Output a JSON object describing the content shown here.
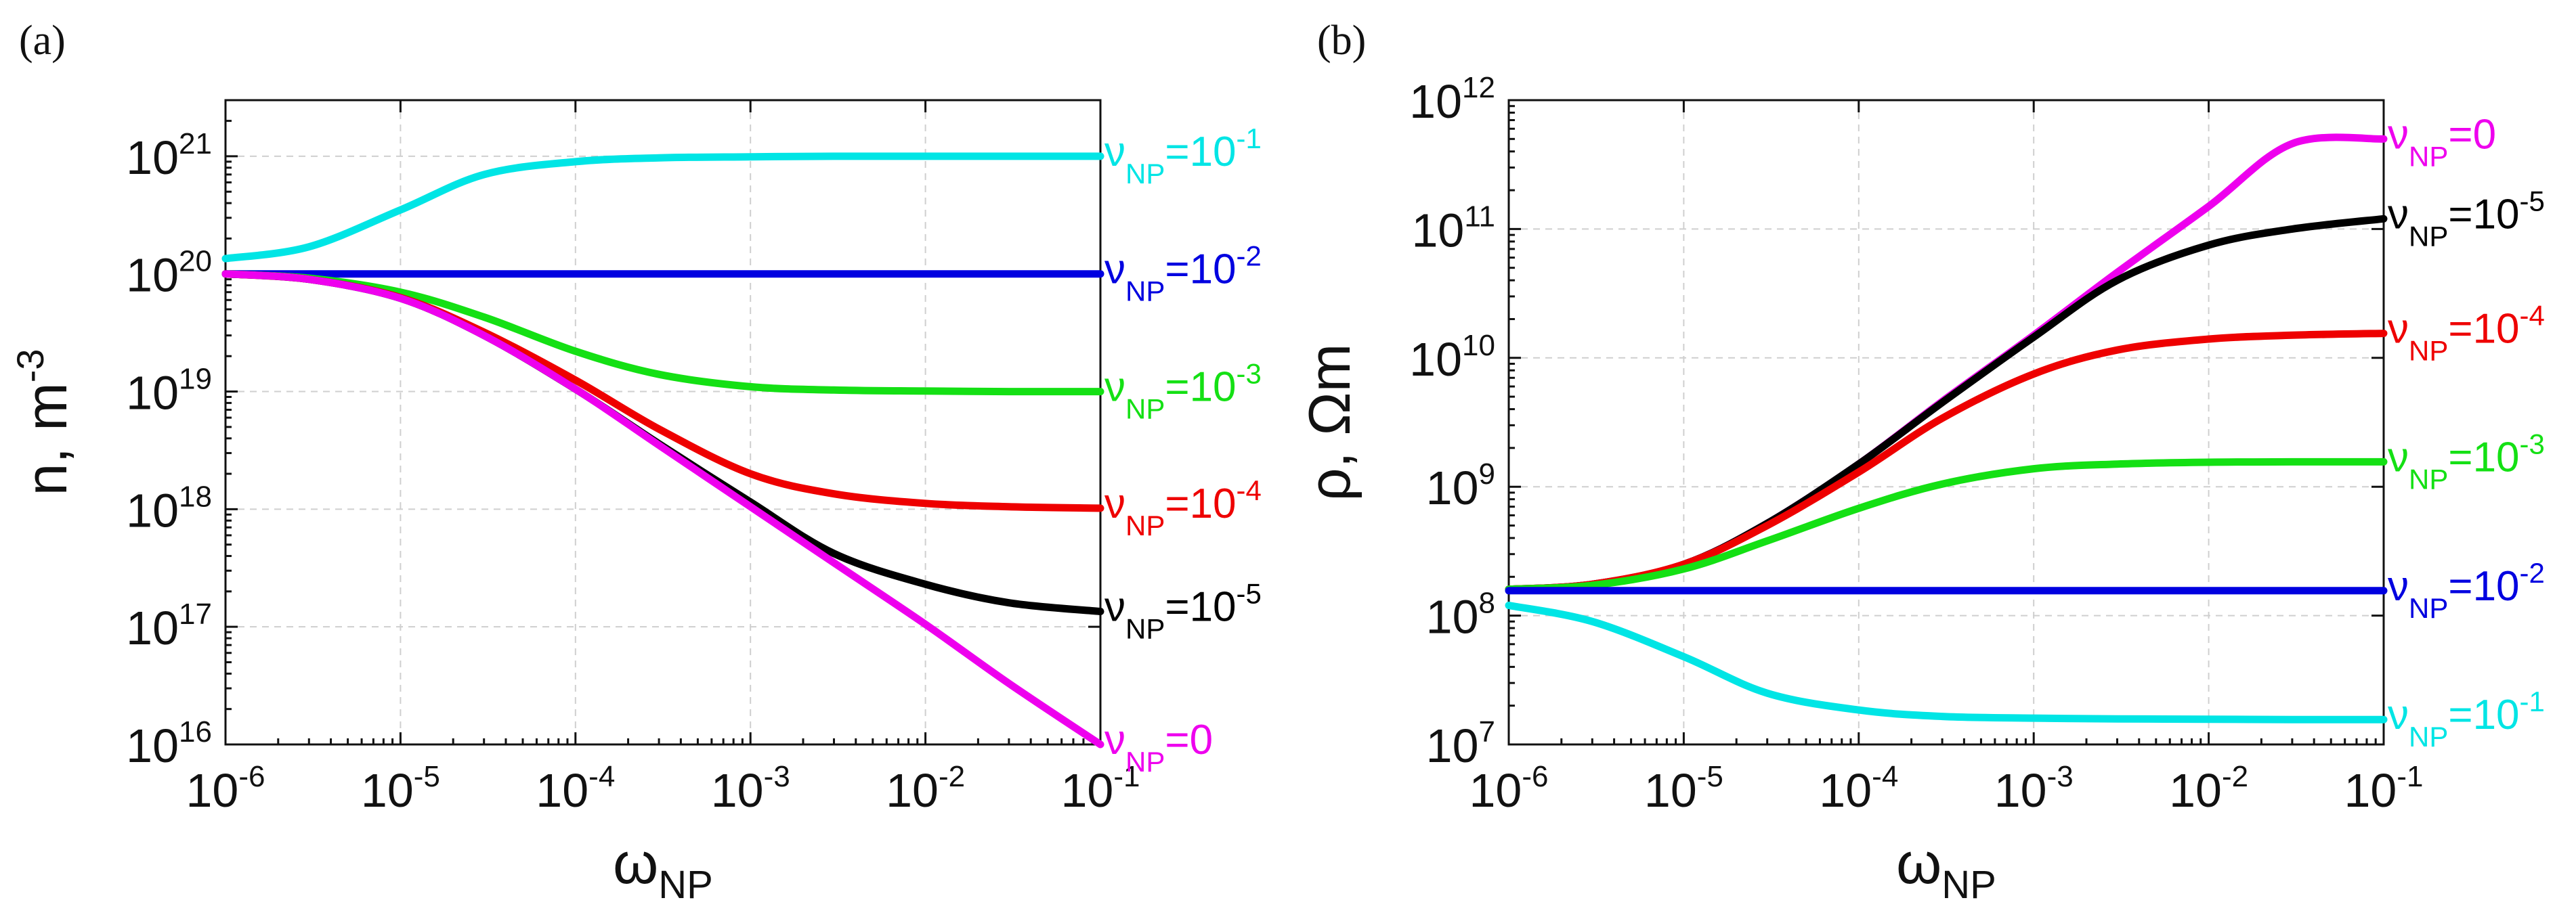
{
  "figure": {
    "panel_labels": [
      "(a)",
      "(b)"
    ]
  },
  "chart_data": [
    {
      "type": "line",
      "panel": "(a)",
      "title": "",
      "xlabel": "ωNP",
      "ylabel": "n, m-3",
      "x_scale": "log",
      "y_scale": "log",
      "xlim": [
        1e-06,
        0.1
      ],
      "ylim": [
        1e+16,
        3e+21
      ],
      "x_ticks": [
        "10-6",
        "10-5",
        "10-4",
        "10-3",
        "10-2",
        "10-1"
      ],
      "y_ticks": [
        "1016",
        "1017",
        "1018",
        "1019",
        "1020",
        "1021"
      ],
      "grid": true,
      "x": [
        1e-06,
        3e-06,
        1e-05,
        3e-05,
        0.0001,
        0.0003,
        0.001,
        0.003,
        0.01,
        0.03,
        0.1
      ],
      "series": [
        {
          "name": "νNP=10-1",
          "label_main": "ν",
          "label_sub": "NP",
          "label_val": "=10",
          "label_exp": "-1",
          "color": "#00e5e5",
          "values": [
            1.35e+20,
            1.7e+20,
            3.5e+20,
            7e+20,
            9e+20,
            9.7e+20,
            9.9e+20,
            1e+21,
            1e+21,
            1e+21,
            1e+21
          ]
        },
        {
          "name": "νNP=10-2",
          "label_main": "ν",
          "label_sub": "NP",
          "label_val": "=10",
          "label_exp": "-2",
          "color": "#0000e0",
          "values": [
            1e+20,
            1e+20,
            1e+20,
            1e+20,
            1e+20,
            1e+20,
            1e+20,
            1e+20,
            1e+20,
            1e+20,
            1e+20
          ]
        },
        {
          "name": "νNP=10-3",
          "label_main": "ν",
          "label_sub": "NP",
          "label_val": "=10",
          "label_exp": "-3",
          "color": "#14e014",
          "values": [
            1e+20,
            9.2e+19,
            7e+19,
            4.3e+19,
            2.2e+19,
            1.4e+19,
            1.1e+19,
            1.03e+19,
            1.01e+19,
            1e+19,
            1e+19
          ]
        },
        {
          "name": "νNP=10-4",
          "label_main": "ν",
          "label_sub": "NP",
          "label_val": "=10",
          "label_exp": "-4",
          "color": "#ee0000",
          "values": [
            1e+20,
            9e+19,
            6.3e+19,
            3.2e+19,
            1.25e+19,
            4.8e+18,
            2e+18,
            1.35e+18,
            1.12e+18,
            1.05e+18,
            1.02e+18
          ]
        },
        {
          "name": "νNP=10-5",
          "label_main": "ν",
          "label_sub": "NP",
          "label_val": "=10",
          "label_exp": "-5",
          "color": "#000000",
          "values": [
            1e+20,
            9e+19,
            6.2e+19,
            3e+19,
            1.05e+19,
            3.6e+18,
            1.15e+18,
            4.2e+17,
            2.3e+17,
            1.6e+17,
            1.35e+17
          ]
        },
        {
          "name": "νNP=0",
          "label_main": "ν",
          "label_sub": "NP",
          "label_val": "=0",
          "label_exp": "",
          "color": "#ee00ee",
          "values": [
            1e+20,
            9e+19,
            6.2e+19,
            3e+19,
            1.05e+19,
            3.5e+18,
            1.05e+18,
            3.5e+17,
            1.05e+17,
            3.3e+16,
            1e+16
          ]
        }
      ]
    },
    {
      "type": "line",
      "panel": "(b)",
      "title": "",
      "xlabel": "ωNP",
      "ylabel": "ρ, Ωm",
      "x_scale": "log",
      "y_scale": "log",
      "xlim": [
        1e-06,
        0.1
      ],
      "ylim": [
        10000000.0,
        1000000000000.0
      ],
      "x_ticks": [
        "10-6",
        "10-5",
        "10-4",
        "10-3",
        "10-2",
        "10-1"
      ],
      "y_ticks": [
        "107",
        "108",
        "109",
        "1010",
        "1011",
        "1012"
      ],
      "grid": true,
      "x": [
        1e-06,
        3e-06,
        1e-05,
        3e-05,
        0.0001,
        0.0003,
        0.001,
        0.003,
        0.01,
        0.03,
        0.1
      ],
      "series": [
        {
          "name": "νNP=0",
          "label_main": "ν",
          "label_sub": "NP",
          "label_val": "=0",
          "label_exp": "",
          "color": "#ee00ee",
          "values": [
            160000000.0,
            175000000.0,
            250000000.0,
            520000000.0,
            1500000000.0,
            4600000000.0,
            15000000000.0,
            46000000000.0,
            150000000000.0,
            460000000000.0,
            500000000000.0
          ]
        },
        {
          "name": "νNP=10-5",
          "label_main": "ν",
          "label_sub": "NP",
          "label_val": "=10",
          "label_exp": "-5",
          "color": "#000000",
          "values": [
            160000000.0,
            175000000.0,
            250000000.0,
            520000000.0,
            1500000000.0,
            4500000000.0,
            14500000000.0,
            40000000000.0,
            75000000000.0,
            100000000000.0,
            120000000000.0
          ]
        },
        {
          "name": "νNP=10-4",
          "label_main": "ν",
          "label_sub": "NP",
          "label_val": "=10",
          "label_exp": "-4",
          "color": "#ee0000",
          "values": [
            160000000.0,
            175000000.0,
            250000000.0,
            500000000.0,
            1300000000.0,
            3400000000.0,
            7500000000.0,
            11500000000.0,
            14000000000.0,
            15000000000.0,
            15500000000.0
          ]
        },
        {
          "name": "νNP=10-3",
          "label_main": "ν",
          "label_sub": "NP",
          "label_val": "=10",
          "label_exp": "-3",
          "color": "#14e014",
          "values": [
            160000000.0,
            172000000.0,
            230000000.0,
            380000000.0,
            680000000.0,
            1050000000.0,
            1380000000.0,
            1500000000.0,
            1550000000.0,
            1560000000.0,
            1560000000.0
          ]
        },
        {
          "name": "νNP=10-2",
          "label_main": "ν",
          "label_sub": "NP",
          "label_val": "=10",
          "label_exp": "-2",
          "color": "#0000e0",
          "values": [
            156000000.0,
            156000000.0,
            156000000.0,
            156000000.0,
            156000000.0,
            156000000.0,
            156000000.0,
            156000000.0,
            156000000.0,
            156000000.0,
            156000000.0
          ]
        },
        {
          "name": "νNP=10-1",
          "label_main": "ν",
          "label_sub": "NP",
          "label_val": "=10",
          "label_exp": "-1",
          "color": "#00e5e5",
          "values": [
            120000000.0,
            90000000.0,
            48000000.0,
            25000000.0,
            18500000.0,
            16500000.0,
            16000000.0,
            15800000.0,
            15700000.0,
            15600000.0,
            15600000.0
          ]
        }
      ]
    }
  ]
}
